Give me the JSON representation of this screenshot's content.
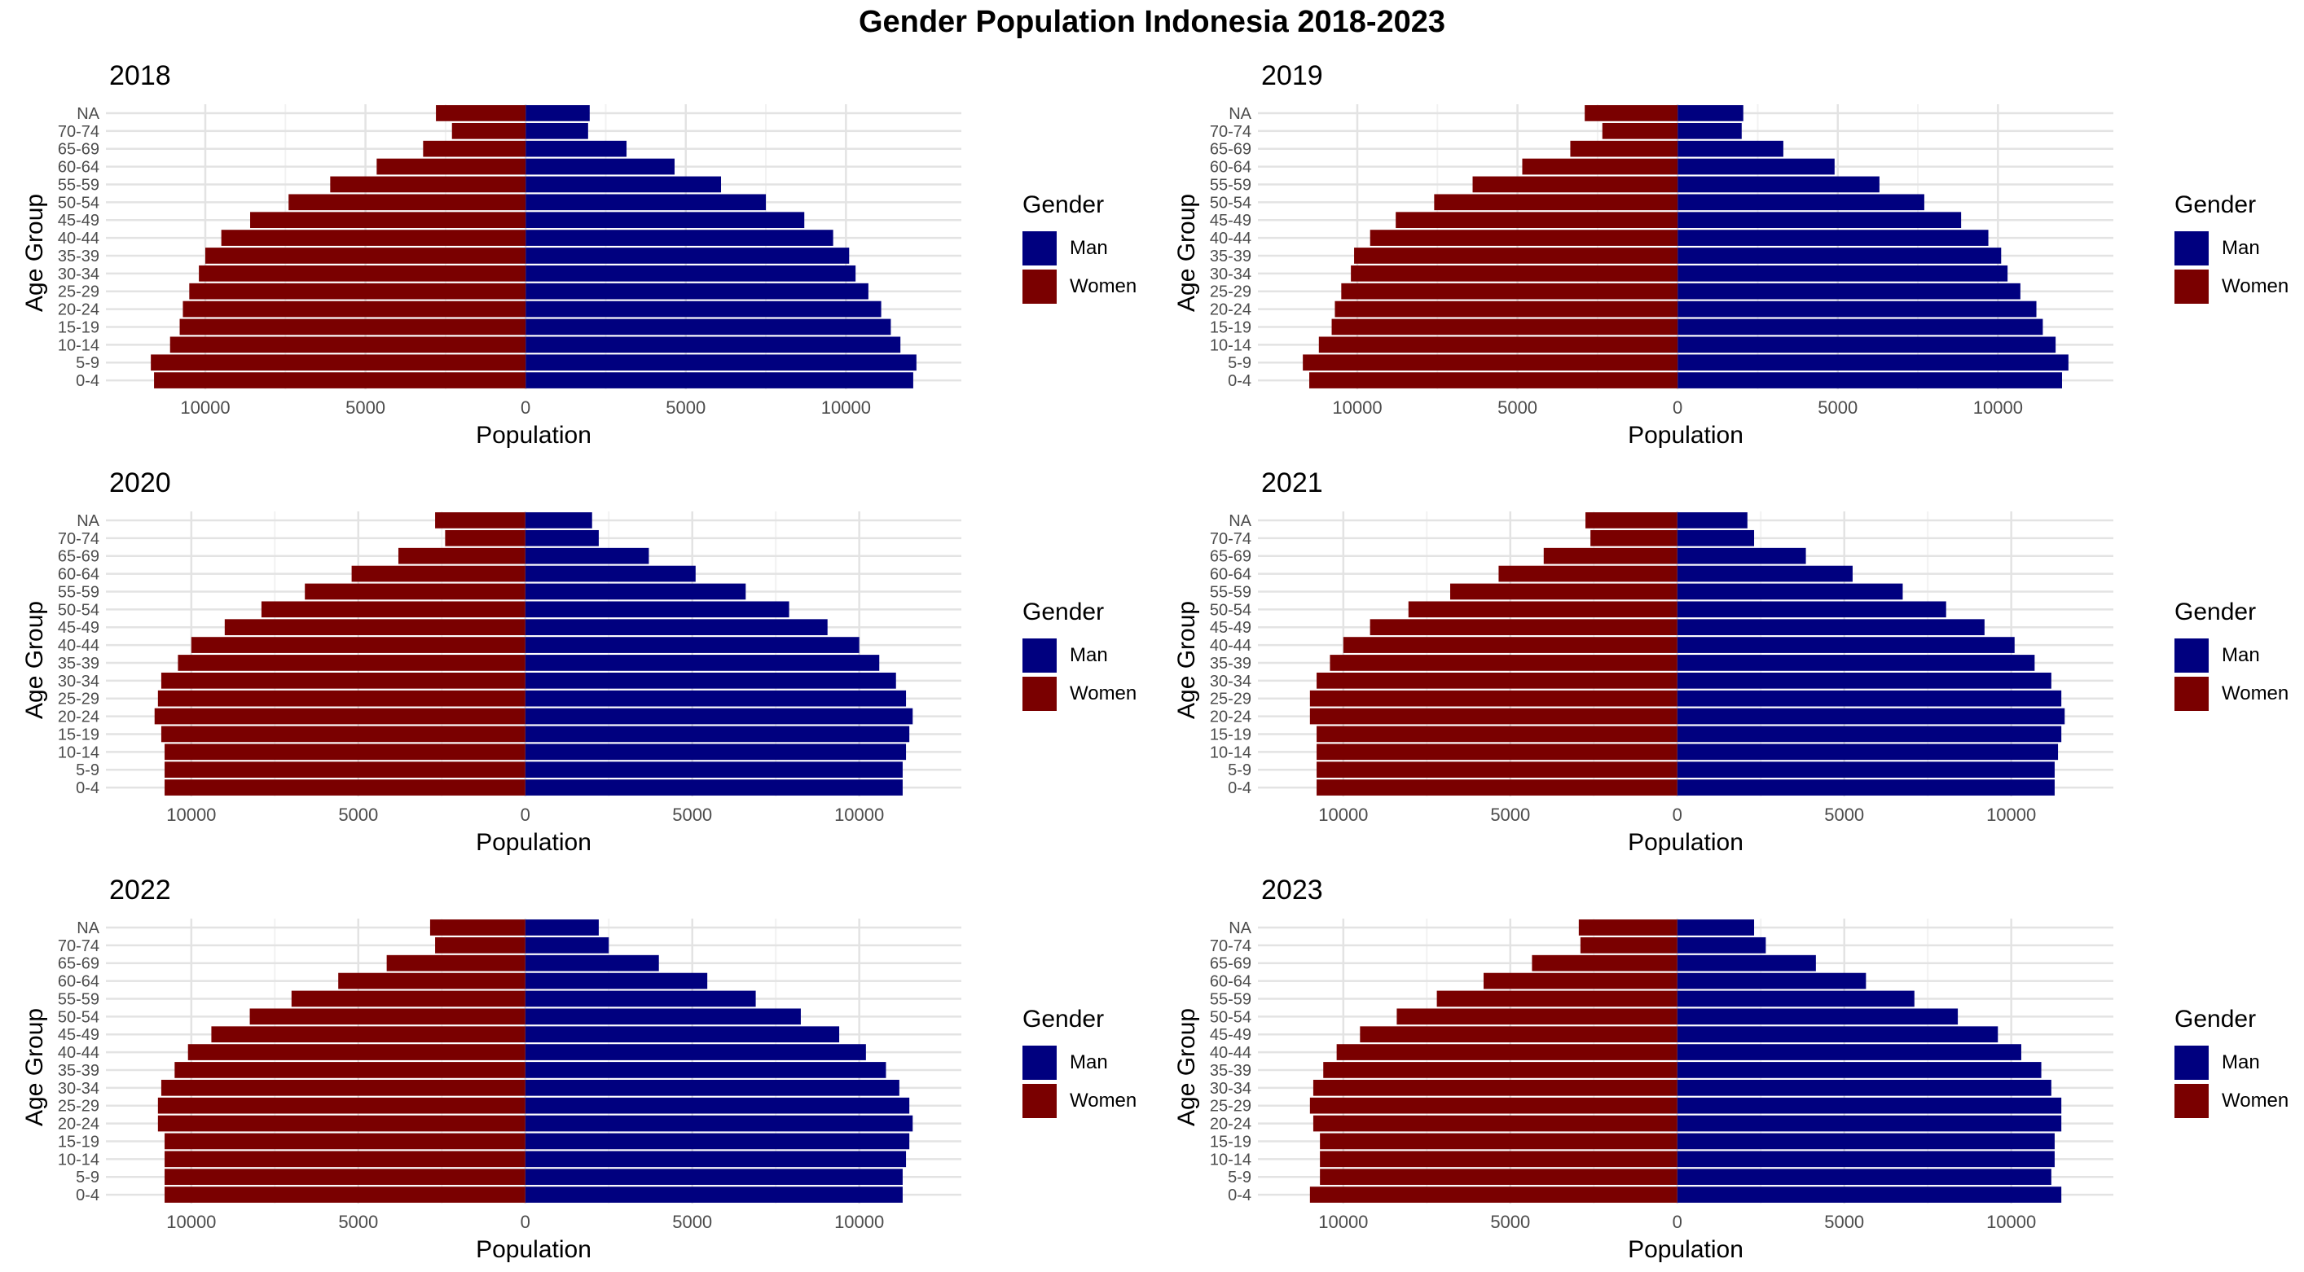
{
  "title": "Gender Population Indonesia 2018-2023",
  "colors": {
    "man": "#00007f",
    "women": "#7a0000",
    "grid_major": "#e3e3e3",
    "grid_minor": "#f2f2f2"
  },
  "chart_data": [
    {
      "type": "bar",
      "title": "2018",
      "xlabel": "Population",
      "ylabel": "Age Group",
      "categories": [
        "0-4",
        "5-9",
        "10-14",
        "15-19",
        "20-24",
        "25-29",
        "30-34",
        "35-39",
        "40-44",
        "45-49",
        "50-54",
        "55-59",
        "60-64",
        "65-69",
        "70-74",
        "NA"
      ],
      "series": [
        {
          "name": "Man",
          "values": [
            12100,
            12200,
            11700,
            11400,
            11100,
            10700,
            10300,
            10100,
            9600,
            8700,
            7500,
            6100,
            4650,
            3150,
            1950,
            2000
          ]
        },
        {
          "name": "Women",
          "values": [
            -11600,
            -11700,
            -11100,
            -10800,
            -10700,
            -10500,
            -10200,
            -10000,
            -9500,
            -8600,
            -7400,
            -6100,
            -4650,
            -3200,
            -2300,
            -2800
          ]
        }
      ],
      "xlim": [
        -12000,
        12500
      ],
      "x_ticks": [
        -10000,
        -5000,
        0,
        5000,
        10000
      ],
      "x_tick_labels": [
        "10000",
        "5000",
        "0",
        "5000",
        "10000"
      ],
      "legend": {
        "title": "Gender",
        "items": [
          "Man",
          "Women"
        ],
        "position": "right"
      },
      "grid": true
    },
    {
      "type": "bar",
      "title": "2019",
      "xlabel": "Population",
      "ylabel": "Age Group",
      "categories": [
        "0-4",
        "5-9",
        "10-14",
        "15-19",
        "20-24",
        "25-29",
        "30-34",
        "35-39",
        "40-44",
        "45-49",
        "50-54",
        "55-59",
        "60-64",
        "65-69",
        "70-74",
        "NA"
      ],
      "series": [
        {
          "name": "Man",
          "values": [
            12000,
            12200,
            11800,
            11400,
            11200,
            10700,
            10300,
            10100,
            9700,
            8850,
            7700,
            6300,
            4900,
            3300,
            2000,
            2050
          ]
        },
        {
          "name": "Women",
          "values": [
            -11500,
            -11700,
            -11200,
            -10800,
            -10700,
            -10500,
            -10200,
            -10100,
            -9600,
            -8800,
            -7600,
            -6400,
            -4850,
            -3350,
            -2350,
            -2900
          ]
        }
      ],
      "xlim": [
        -12000,
        12500
      ],
      "x_ticks": [
        -10000,
        -5000,
        0,
        5000,
        10000
      ],
      "x_tick_labels": [
        "10000",
        "5000",
        "0",
        "5000",
        "10000"
      ],
      "legend": {
        "title": "Gender",
        "items": [
          "Man",
          "Women"
        ],
        "position": "right"
      },
      "grid": true
    },
    {
      "type": "bar",
      "title": "2020",
      "xlabel": "Population",
      "ylabel": "Age Group",
      "categories": [
        "0-4",
        "5-9",
        "10-14",
        "15-19",
        "20-24",
        "25-29",
        "30-34",
        "35-39",
        "40-44",
        "45-49",
        "50-54",
        "55-59",
        "60-64",
        "65-69",
        "70-74",
        "NA"
      ],
      "series": [
        {
          "name": "Man",
          "values": [
            11300,
            11300,
            11400,
            11500,
            11600,
            11400,
            11100,
            10600,
            10000,
            9050,
            7900,
            6600,
            5100,
            3700,
            2200,
            2000
          ]
        },
        {
          "name": "Women",
          "values": [
            -10800,
            -10800,
            -10800,
            -10900,
            -11100,
            -11000,
            -10900,
            -10400,
            -10000,
            -9000,
            -7900,
            -6600,
            -5200,
            -3800,
            -2400,
            -2700
          ]
        }
      ],
      "xlim": [
        -11500,
        12000
      ],
      "x_ticks": [
        -10000,
        -5000,
        0,
        5000,
        10000
      ],
      "x_tick_labels": [
        "10000",
        "5000",
        "0",
        "5000",
        "10000"
      ],
      "legend": {
        "title": "Gender",
        "items": [
          "Man",
          "Women"
        ],
        "position": "right"
      },
      "grid": true
    },
    {
      "type": "bar",
      "title": "2021",
      "xlabel": "Population",
      "ylabel": "Age Group",
      "categories": [
        "0-4",
        "5-9",
        "10-14",
        "15-19",
        "20-24",
        "25-29",
        "30-34",
        "35-39",
        "40-44",
        "45-49",
        "50-54",
        "55-59",
        "60-64",
        "65-69",
        "70-74",
        "NA"
      ],
      "series": [
        {
          "name": "Man",
          "values": [
            11300,
            11300,
            11400,
            11500,
            11600,
            11500,
            11200,
            10700,
            10100,
            9200,
            8050,
            6750,
            5250,
            3850,
            2300,
            2100
          ]
        },
        {
          "name": "Women",
          "values": [
            -10800,
            -10800,
            -10800,
            -10800,
            -11000,
            -11000,
            -10800,
            -10400,
            -10000,
            -9200,
            -8050,
            -6800,
            -5350,
            -4000,
            -2600,
            -2750
          ]
        }
      ],
      "xlim": [
        -11500,
        12000
      ],
      "x_ticks": [
        -10000,
        -5000,
        0,
        5000,
        10000
      ],
      "x_tick_labels": [
        "10000",
        "5000",
        "0",
        "5000",
        "10000"
      ],
      "legend": {
        "title": "Gender",
        "items": [
          "Man",
          "Women"
        ],
        "position": "right"
      },
      "grid": true
    },
    {
      "type": "bar",
      "title": "2022",
      "xlabel": "Population",
      "ylabel": "Age Group",
      "categories": [
        "0-4",
        "5-9",
        "10-14",
        "15-19",
        "20-24",
        "25-29",
        "30-34",
        "35-39",
        "40-44",
        "45-49",
        "50-54",
        "55-59",
        "60-64",
        "65-69",
        "70-74",
        "NA"
      ],
      "series": [
        {
          "name": "Man",
          "values": [
            11300,
            11300,
            11400,
            11500,
            11600,
            11500,
            11200,
            10800,
            10200,
            9400,
            8250,
            6900,
            5450,
            4000,
            2500,
            2200
          ]
        },
        {
          "name": "Women",
          "values": [
            -10800,
            -10800,
            -10800,
            -10800,
            -11000,
            -11000,
            -10900,
            -10500,
            -10100,
            -9400,
            -8250,
            -7000,
            -5600,
            -4150,
            -2700,
            -2850
          ]
        }
      ],
      "xlim": [
        -11500,
        12000
      ],
      "x_ticks": [
        -10000,
        -5000,
        0,
        5000,
        10000
      ],
      "x_tick_labels": [
        "10000",
        "5000",
        "0",
        "5000",
        "10000"
      ],
      "legend": {
        "title": "Gender",
        "items": [
          "Man",
          "Women"
        ],
        "position": "right"
      },
      "grid": true
    },
    {
      "type": "bar",
      "title": "2023",
      "xlabel": "Population",
      "ylabel": "Age Group",
      "categories": [
        "0-4",
        "5-9",
        "10-14",
        "15-19",
        "20-24",
        "25-29",
        "30-34",
        "35-39",
        "40-44",
        "45-49",
        "50-54",
        "55-59",
        "60-64",
        "65-69",
        "70-74",
        "NA"
      ],
      "series": [
        {
          "name": "Man",
          "values": [
            11500,
            11200,
            11300,
            11300,
            11500,
            11500,
            11200,
            10900,
            10300,
            9600,
            8400,
            7100,
            5650,
            4150,
            2650,
            2300
          ]
        },
        {
          "name": "Women",
          "values": [
            -11000,
            -10700,
            -10700,
            -10700,
            -10900,
            -11000,
            -10900,
            -10600,
            -10200,
            -9500,
            -8400,
            -7200,
            -5800,
            -4350,
            -2900,
            -2950
          ]
        }
      ],
      "xlim": [
        -11500,
        12000
      ],
      "x_ticks": [
        -10000,
        -5000,
        0,
        5000,
        10000
      ],
      "x_tick_labels": [
        "10000",
        "5000",
        "0",
        "5000",
        "10000"
      ],
      "legend": {
        "title": "Gender",
        "items": [
          "Man",
          "Women"
        ],
        "position": "right"
      },
      "grid": true
    }
  ]
}
